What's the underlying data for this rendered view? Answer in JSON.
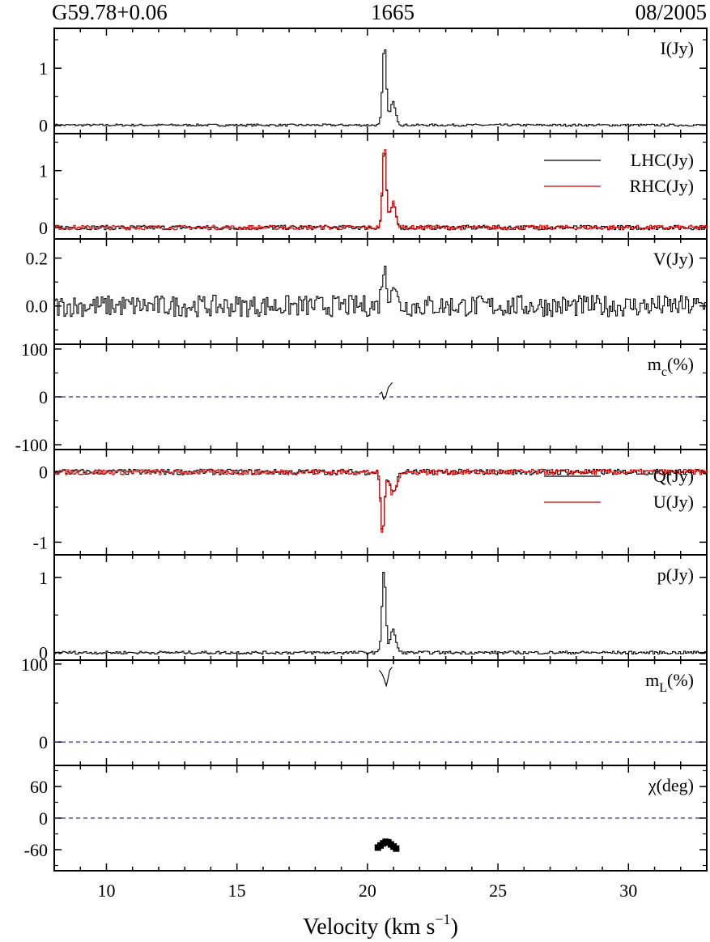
{
  "header": {
    "left": "G59.78+0.06",
    "center": "1665",
    "right": "08/2005"
  },
  "chart_data": {
    "type": "line",
    "x_axis": {
      "label": "Velocity (km s",
      "label_sup": "−1",
      "label_end": ")",
      "range": [
        8,
        33
      ],
      "ticks": [
        10,
        15,
        20,
        25,
        30
      ],
      "tick_labels": [
        "10",
        "15",
        "20",
        "25",
        "30"
      ]
    },
    "panels": [
      {
        "id": "I",
        "label": "I(Jy)",
        "ylim": [
          -0.15,
          1.7
        ],
        "yticks": [
          0,
          1
        ],
        "ytick_labels": [
          "0",
          "1"
        ],
        "series": [
          {
            "legend": "",
            "color": "#000000",
            "noise": 0.02,
            "peaks": [
              [
                20.62,
                1.4,
                0.1
              ],
              [
                20.95,
                0.4,
                0.15
              ]
            ]
          }
        ]
      },
      {
        "id": "LR",
        "label": "",
        "ylim": [
          -0.2,
          1.65
        ],
        "yticks": [
          0,
          1
        ],
        "ytick_labels": [
          "0",
          "1"
        ],
        "legend_entries": [
          {
            "text": "LHC(Jy)",
            "color": "#000000"
          },
          {
            "text": "RHC(Jy)",
            "color": "#cc0000"
          }
        ],
        "series": [
          {
            "legend": "LHC(Jy)",
            "color": "#000000",
            "noise": 0.04,
            "peaks": [
              [
                20.62,
                1.4,
                0.1
              ],
              [
                20.95,
                0.4,
                0.15
              ]
            ]
          },
          {
            "legend": "RHC(Jy)",
            "color": "#cc0000",
            "noise": 0.04,
            "peaks": [
              [
                20.62,
                1.45,
                0.1
              ],
              [
                20.95,
                0.45,
                0.15
              ]
            ]
          }
        ]
      },
      {
        "id": "V",
        "label": "V(Jy)",
        "ylim": [
          -0.16,
          0.28
        ],
        "yticks": [
          0.0,
          0.2
        ],
        "ytick_labels": [
          "0.0",
          "0.2"
        ],
        "series": [
          {
            "legend": "",
            "color": "#000000",
            "noise": 0.045,
            "peaks": [
              [
                20.6,
                0.16,
                0.12
              ],
              [
                20.95,
                0.1,
                0.15
              ]
            ]
          }
        ]
      },
      {
        "id": "mc",
        "label": "m",
        "label_sub": "c",
        "label_end": "(%)",
        "ylim": [
          -110,
          110
        ],
        "yticks": [
          -100,
          0,
          100
        ],
        "ytick_labels": [
          "-100",
          "0",
          "100"
        ],
        "dashed_zero": true,
        "series": [
          {
            "legend": "",
            "color": "#000000",
            "segment": [
              [
                20.45,
                5
              ],
              [
                20.55,
                10
              ],
              [
                20.62,
                -5
              ],
              [
                20.7,
                0
              ],
              [
                20.8,
                20
              ],
              [
                20.88,
                25
              ],
              [
                20.95,
                30
              ]
            ]
          }
        ]
      },
      {
        "id": "QU",
        "label": "",
        "ylim": [
          -1.18,
          0.32
        ],
        "yticks": [
          -1,
          0
        ],
        "ytick_labels": [
          "-1",
          "0"
        ],
        "legend_entries": [
          {
            "text": "Q(Jy)",
            "color": "#000000"
          },
          {
            "text": "U(Jy)",
            "color": "#cc0000"
          }
        ],
        "series": [
          {
            "legend": "Q(Jy)",
            "color": "#000000",
            "noise": 0.04,
            "peaks": [
              [
                20.55,
                -0.85,
                0.1
              ],
              [
                20.95,
                -0.3,
                0.18
              ]
            ]
          },
          {
            "legend": "U(Jy)",
            "color": "#cc0000",
            "noise": 0.04,
            "peaks": [
              [
                20.55,
                -0.9,
                0.1
              ],
              [
                20.95,
                -0.32,
                0.18
              ]
            ]
          }
        ]
      },
      {
        "id": "p",
        "label": "p(Jy)",
        "ylim": [
          -0.1,
          1.3
        ],
        "yticks": [
          0,
          1
        ],
        "ytick_labels": [
          "0",
          "1"
        ],
        "series": [
          {
            "legend": "",
            "color": "#000000",
            "noise": 0.02,
            "peaks": [
              [
                20.6,
                1.1,
                0.1
              ],
              [
                20.95,
                0.3,
                0.15
              ]
            ]
          }
        ]
      },
      {
        "id": "mL",
        "label": "m",
        "label_sub": "L",
        "label_end": "(%)",
        "ylim": [
          -30,
          105
        ],
        "yticks": [
          0,
          100
        ],
        "ytick_labels": [
          "0",
          "100"
        ],
        "dashed_zero": true,
        "series": [
          {
            "legend": "",
            "color": "#000000",
            "segment": [
              [
                20.45,
                92
              ],
              [
                20.55,
                88
              ],
              [
                20.65,
                80
              ],
              [
                20.72,
                72
              ],
              [
                20.78,
                80
              ],
              [
                20.85,
                92
              ],
              [
                20.95,
                96
              ]
            ]
          }
        ]
      },
      {
        "id": "chi",
        "label": "χ(deg)",
        "ylim": [
          -100,
          100
        ],
        "yticks": [
          -60,
          0,
          60
        ],
        "ytick_labels": [
          "-60",
          "0",
          "60"
        ],
        "dashed_zero": true,
        "points": [
          [
            20.4,
            -56
          ],
          [
            20.5,
            -52
          ],
          [
            20.6,
            -48
          ],
          [
            20.7,
            -45
          ],
          [
            20.8,
            -46
          ],
          [
            20.9,
            -50
          ],
          [
            21.0,
            -54
          ],
          [
            21.1,
            -58
          ]
        ]
      }
    ]
  }
}
